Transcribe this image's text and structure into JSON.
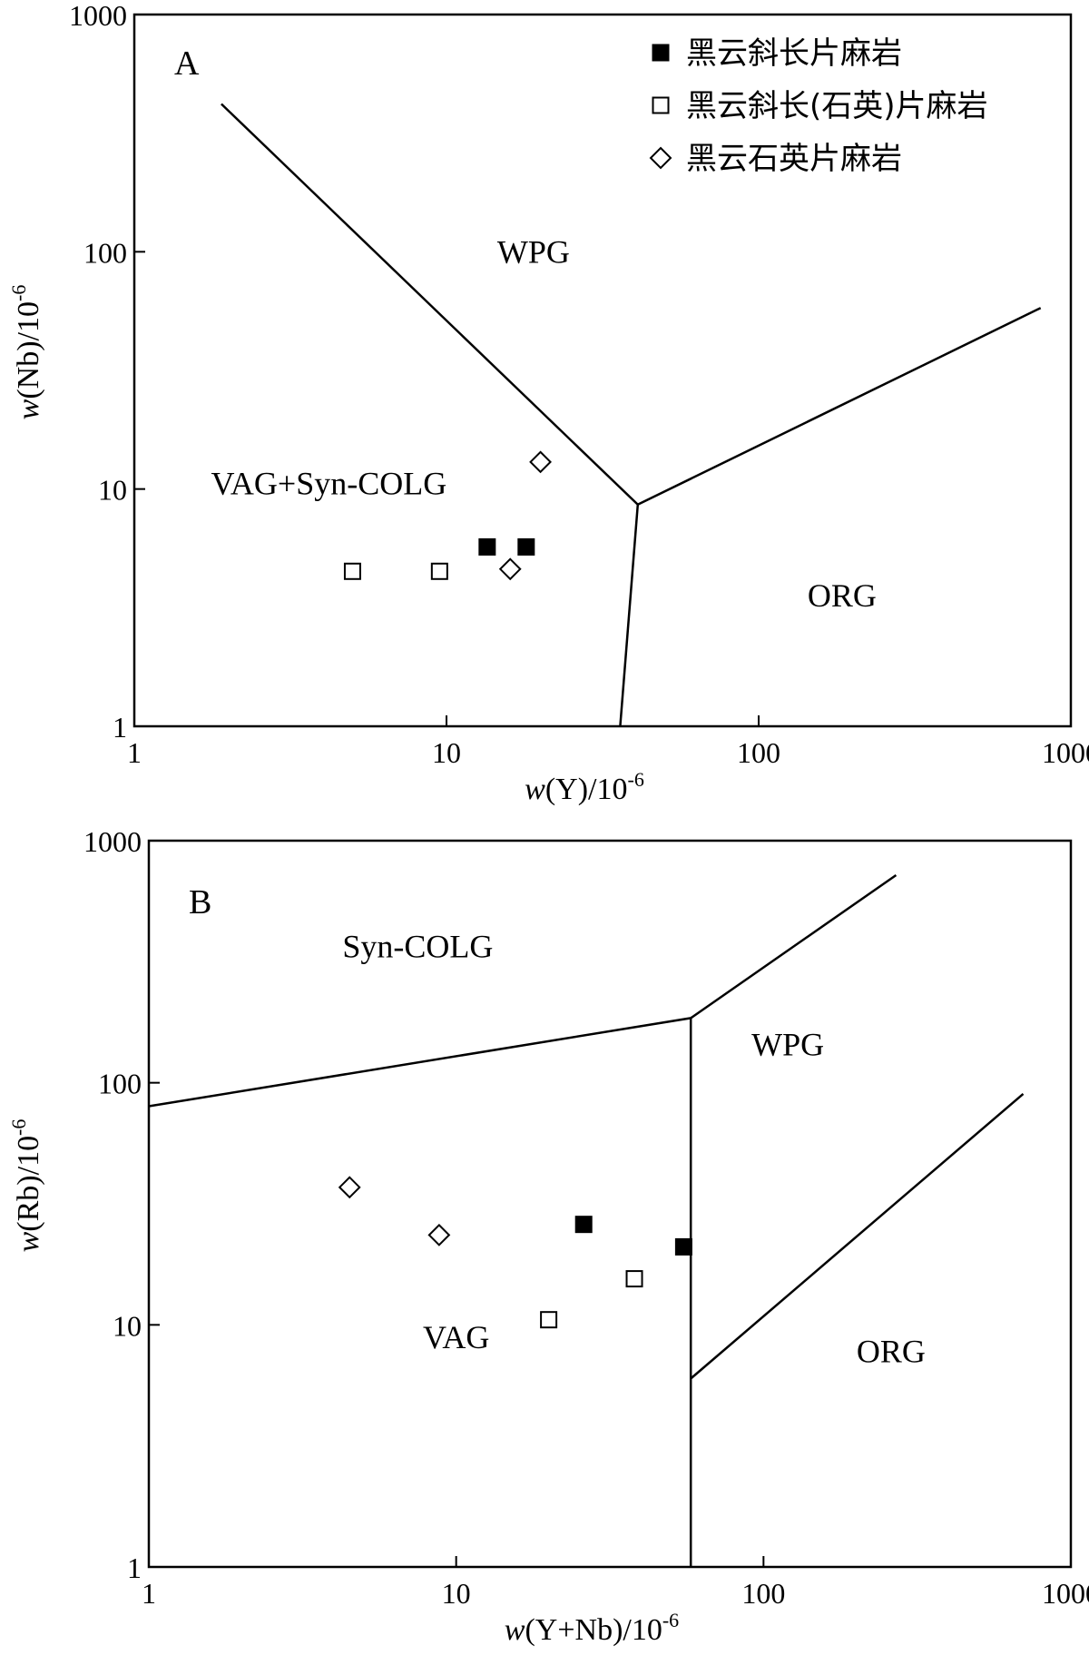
{
  "chart_data": [
    {
      "type": "scatter",
      "panel": "A",
      "xscale": "log",
      "yscale": "log",
      "xlim": [
        1,
        1000
      ],
      "ylim": [
        1,
        1000
      ],
      "x_ticks": [
        "1",
        "10",
        "100",
        "1000"
      ],
      "y_ticks": [
        "1",
        "10",
        "100",
        "1000"
      ],
      "xlabel": {
        "var": "w",
        "expr": "(Y)/10",
        "exp": "-6"
      },
      "ylabel": {
        "var": "w",
        "expr": "(Nb)/10",
        "exp": "-6"
      },
      "legend_position": "top-right",
      "legend": [
        {
          "label": "黑云斜长片麻岩",
          "marker": "filled-square"
        },
        {
          "label": "黑云斜长(石英)片麻岩",
          "marker": "open-square"
        },
        {
          "label": "黑云石英片麻岩",
          "marker": "open-diamond"
        }
      ],
      "fields": [
        {
          "label": "WPG",
          "x": 19,
          "y": 90
        },
        {
          "label": "VAG+Syn-COLG",
          "x": 4.2,
          "y": 9.5
        },
        {
          "label": "ORG",
          "x": 185,
          "y": 3.2
        }
      ],
      "boundaries": [
        {
          "points": [
            [
              1.9,
              420
            ],
            [
              41,
              8.6
            ],
            [
              800,
              58
            ]
          ]
        },
        {
          "points": [
            [
              41,
              8.6
            ],
            [
              36,
              1
            ]
          ]
        }
      ],
      "series": [
        {
          "marker": "filled-square",
          "points": [
            [
              13.5,
              5.7
            ],
            [
              18,
              5.7
            ]
          ]
        },
        {
          "marker": "open-square",
          "points": [
            [
              5,
              4.5
            ],
            [
              9.5,
              4.5
            ]
          ]
        },
        {
          "marker": "open-diamond",
          "points": [
            [
              20,
              13
            ],
            [
              16,
              4.6
            ]
          ]
        }
      ]
    },
    {
      "type": "scatter",
      "panel": "B",
      "xscale": "log",
      "yscale": "log",
      "xlim": [
        1,
        1000
      ],
      "ylim": [
        1,
        1000
      ],
      "x_ticks": [
        "1",
        "10",
        "100",
        "1000"
      ],
      "y_ticks": [
        "1",
        "10",
        "100",
        "1000"
      ],
      "xlabel": {
        "var": "w",
        "expr": "(Y+Nb)/10",
        "exp": "-6"
      },
      "ylabel": {
        "var": "w",
        "expr": "(Rb)/10",
        "exp": "-6"
      },
      "fields": [
        {
          "label": "Syn-COLG",
          "x": 7.5,
          "y": 330
        },
        {
          "label": "WPG",
          "x": 120,
          "y": 130
        },
        {
          "label": "VAG",
          "x": 10,
          "y": 8
        },
        {
          "label": "ORG",
          "x": 260,
          "y": 7
        }
      ],
      "boundaries": [
        {
          "points": [
            [
              1,
              80
            ],
            [
              58,
              185
            ],
            [
              270,
              720
            ]
          ]
        },
        {
          "points": [
            [
              58,
              185
            ],
            [
              58,
              1
            ]
          ]
        },
        {
          "points": [
            [
              58,
              6
            ],
            [
              700,
              90
            ]
          ]
        }
      ],
      "series": [
        {
          "marker": "filled-square",
          "points": [
            [
              26,
              26
            ],
            [
              55,
              21
            ]
          ]
        },
        {
          "marker": "open-square",
          "points": [
            [
              20,
              10.5
            ],
            [
              38,
              15.5
            ]
          ]
        },
        {
          "marker": "open-diamond",
          "points": [
            [
              4.5,
              37
            ],
            [
              8.8,
              23.5
            ]
          ]
        }
      ]
    }
  ]
}
